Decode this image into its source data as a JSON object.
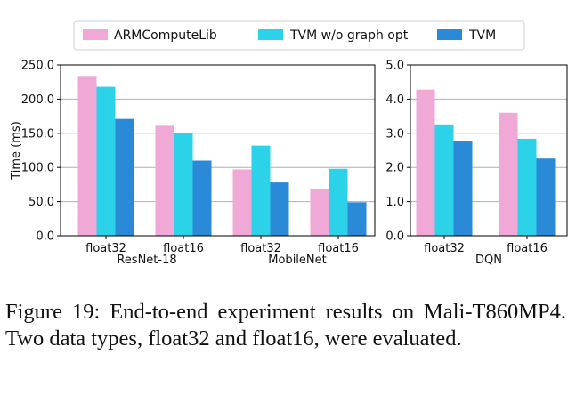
{
  "legend": {
    "placement": "top-center",
    "entries": [
      {
        "name": "ARMComputeLib",
        "color": "#f0a9d6"
      },
      {
        "name": "TVM w/o graph opt",
        "color": "#2cd3e8"
      },
      {
        "name": "TVM",
        "color": "#2b8ad8"
      }
    ]
  },
  "chart_data": [
    {
      "type": "bar",
      "ylabel": "Time (ms)",
      "ylim": [
        0,
        250
      ],
      "yticks": [
        "0.0",
        "50.0",
        "100.0",
        "150.0",
        "200.0",
        "250.0"
      ],
      "grid": "horizontal",
      "groups": [
        "ResNet-18",
        "MobileNet"
      ],
      "categories": [
        "float32",
        "float16",
        "float32",
        "float16"
      ],
      "series": [
        {
          "name": "ARMComputeLib",
          "values": [
            234,
            161,
            97,
            69
          ]
        },
        {
          "name": "TVM w/o graph opt",
          "values": [
            218,
            150,
            132,
            98
          ]
        },
        {
          "name": "TVM",
          "values": [
            171,
            110,
            78,
            49
          ]
        }
      ]
    },
    {
      "type": "bar",
      "ylim": [
        0,
        5
      ],
      "yticks": [
        "0.0",
        "1.0",
        "2.0",
        "3.0",
        "4.0",
        "5.0"
      ],
      "grid": "horizontal",
      "groups": [
        "DQN"
      ],
      "categories": [
        "float32",
        "float16"
      ],
      "series": [
        {
          "name": "ARMComputeLib",
          "values": [
            4.28,
            3.6
          ]
        },
        {
          "name": "TVM w/o graph opt",
          "values": [
            3.26,
            2.84
          ]
        },
        {
          "name": "TVM",
          "values": [
            2.76,
            2.26
          ]
        }
      ]
    }
  ],
  "caption": "Figure 19:  End-to-end experiment results on Mali-T860MP4. Two data types, float32 and float16, were evaluated."
}
